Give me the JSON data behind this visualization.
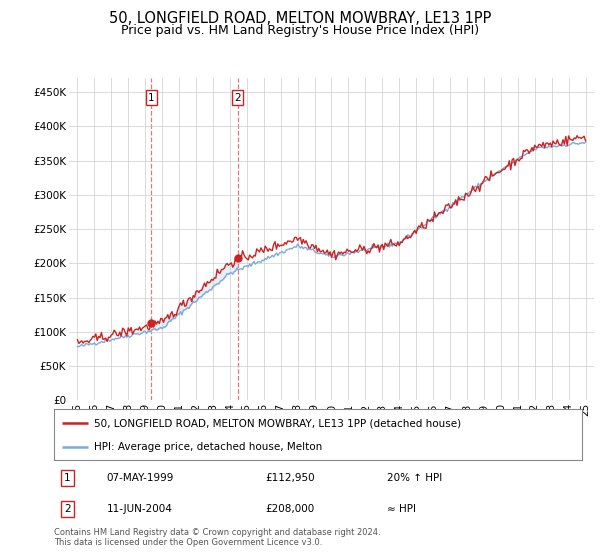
{
  "title": "50, LONGFIELD ROAD, MELTON MOWBRAY, LE13 1PP",
  "subtitle": "Price paid vs. HM Land Registry's House Price Index (HPI)",
  "xlim_start": 1994.5,
  "xlim_end": 2025.5,
  "ylim": [
    0,
    470000
  ],
  "yticks": [
    0,
    50000,
    100000,
    150000,
    200000,
    250000,
    300000,
    350000,
    400000,
    450000
  ],
  "ytick_labels": [
    "£0",
    "£50K",
    "£100K",
    "£150K",
    "£200K",
    "£250K",
    "£300K",
    "£350K",
    "£400K",
    "£450K"
  ],
  "xticks": [
    1995,
    1996,
    1997,
    1998,
    1999,
    2000,
    2001,
    2002,
    2003,
    2004,
    2005,
    2006,
    2007,
    2008,
    2009,
    2010,
    2011,
    2012,
    2013,
    2014,
    2015,
    2016,
    2017,
    2018,
    2019,
    2020,
    2021,
    2022,
    2023,
    2024,
    2025
  ],
  "xtick_labels": [
    "95",
    "96",
    "97",
    "98",
    "99",
    "00",
    "01",
    "02",
    "03",
    "04",
    "05",
    "06",
    "07",
    "08",
    "09",
    "10",
    "11",
    "12",
    "13",
    "14",
    "15",
    "16",
    "17",
    "18",
    "19",
    "20",
    "21",
    "22",
    "23",
    "24",
    "25"
  ],
  "hpi_color": "#7aabdb",
  "price_color": "#cc2222",
  "transaction1_x": 1999.37,
  "transaction1_y": 112950,
  "transaction1_label": "1",
  "transaction1_date": "07-MAY-1999",
  "transaction1_price": "£112,950",
  "transaction1_hpi_text": "20% ↑ HPI",
  "transaction2_x": 2004.45,
  "transaction2_y": 208000,
  "transaction2_label": "2",
  "transaction2_date": "11-JUN-2004",
  "transaction2_price": "£208,000",
  "transaction2_hpi_text": "≈ HPI",
  "legend_line1": "50, LONGFIELD ROAD, MELTON MOWBRAY, LE13 1PP (detached house)",
  "legend_line2": "HPI: Average price, detached house, Melton",
  "footnote": "Contains HM Land Registry data © Crown copyright and database right 2024.\nThis data is licensed under the Open Government Licence v3.0.",
  "background_color": "#ffffff",
  "plot_bg_color": "#ffffff",
  "grid_color": "#cccccc",
  "title_fontsize": 10.5,
  "subtitle_fontsize": 9
}
